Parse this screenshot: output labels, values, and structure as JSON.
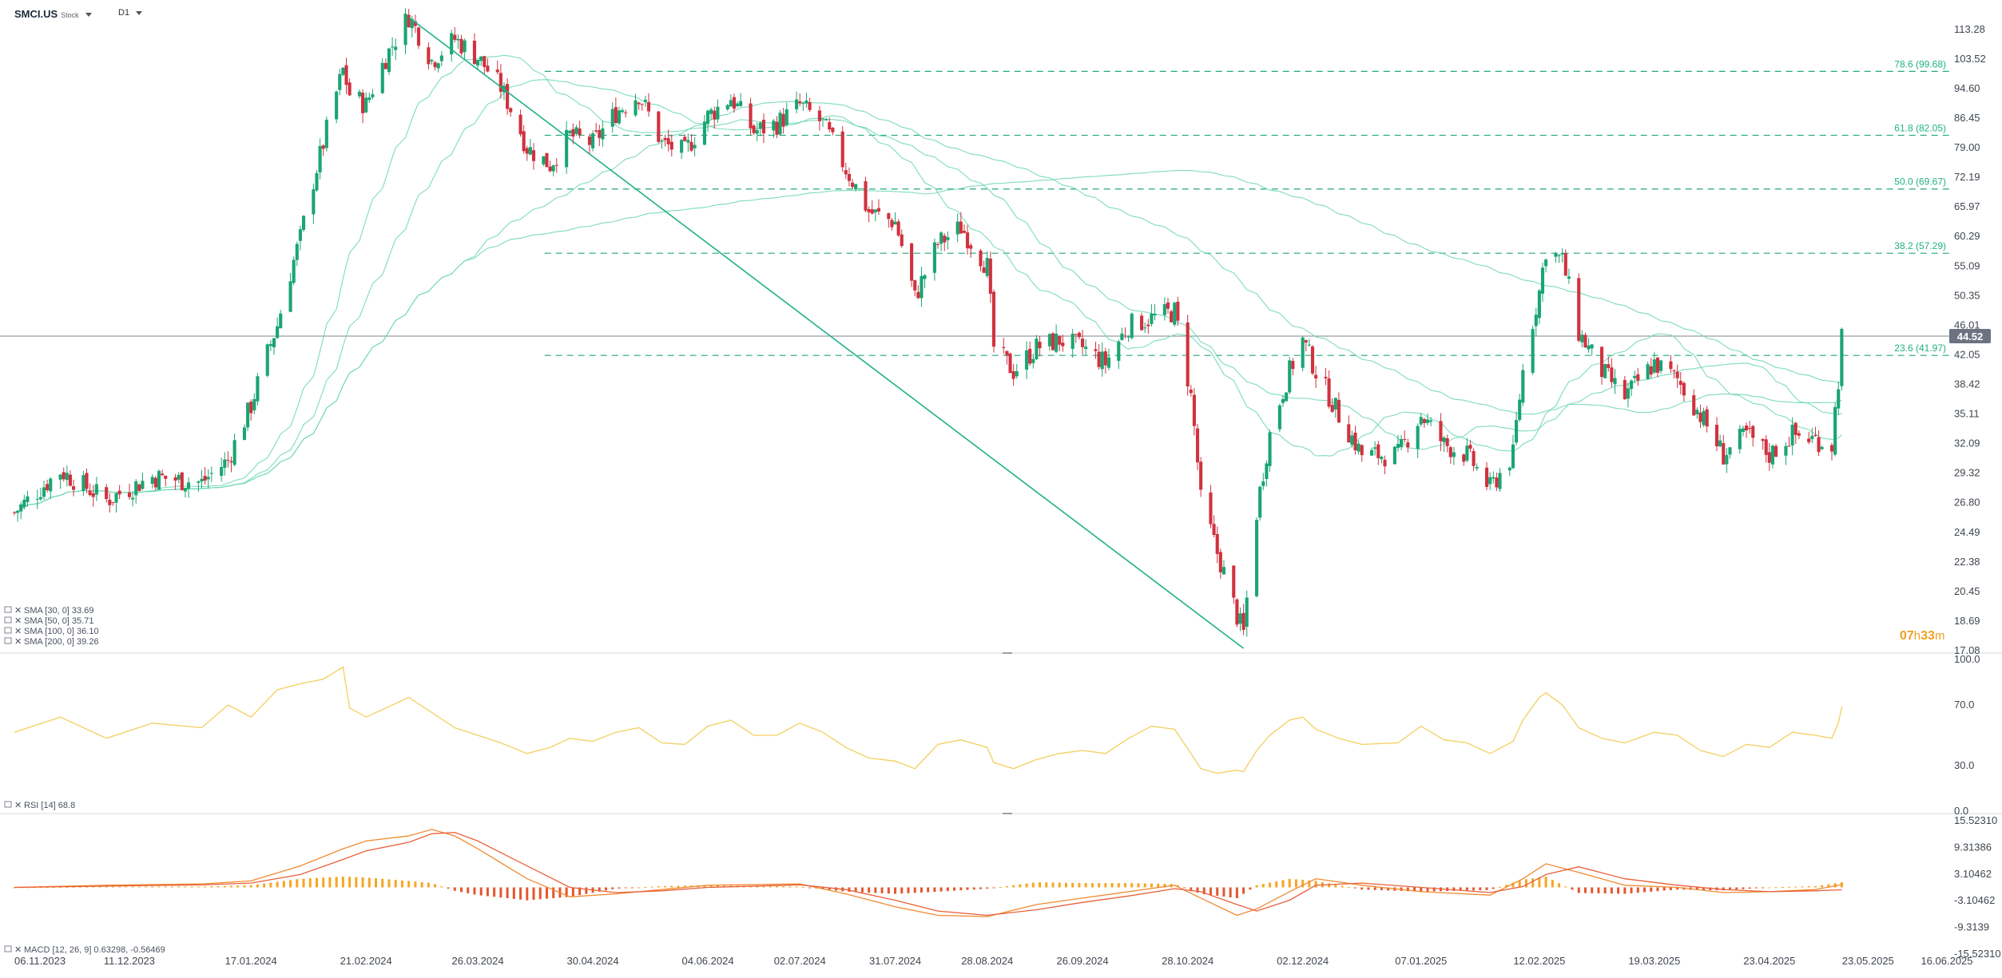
{
  "header": {
    "symbol": "SMCI.US",
    "asset_class": "Stock",
    "timeframe": "D1"
  },
  "timer": {
    "hours": "07",
    "hours_unit": "h",
    "minutes": "33",
    "minutes_unit": "m"
  },
  "colors": {
    "up_candle": "#1aa573",
    "down_candle": "#d0323f",
    "sma_line": "#6fd8b4",
    "fib_line": "#23a97a",
    "trendline": "#1fb08a",
    "rsi_line": "#f3cf5e",
    "macd_line": "#f08a30",
    "signal_line": "#e8603a",
    "hist_pos": "#f5a623",
    "hist_neg": "#e4572e",
    "price_badge": "#6b7280"
  },
  "chart_data": [
    {
      "type": "candlestick",
      "panel": "price",
      "symbol": "SMCI.US",
      "timeframe": "D1",
      "ylim": [
        17.08,
        118
      ],
      "y_ticks": [
        "113.28",
        "103.52",
        "94.60",
        "86.45",
        "79.00",
        "72.19",
        "65.97",
        "60.29",
        "55.09",
        "50.35",
        "46.01",
        "42.05",
        "38.42",
        "35.11",
        "32.09",
        "29.32",
        "26.80",
        "24.49",
        "22.38",
        "20.45",
        "18.69",
        "17.08"
      ],
      "x_ticks": [
        "06.11.2023",
        "11.12.2023",
        "17.01.2024",
        "21.02.2024",
        "26.03.2024",
        "30.04.2024",
        "04.06.2024",
        "02.07.2024",
        "31.07.2024",
        "28.08.2024",
        "26.09.2024",
        "28.10.2024",
        "02.12.2024",
        "07.01.2025",
        "12.02.2025",
        "19.03.2025",
        "23.04.2025",
        "23.05.2025",
        "16.06.2025"
      ],
      "last_price": "44.52",
      "close_path": [
        [
          "06.11.2023",
          26.0
        ],
        [
          "20.11.2023",
          29.5
        ],
        [
          "04.12.2023",
          27.0
        ],
        [
          "18.12.2023",
          29.0
        ],
        [
          "02.01.2024",
          28.5
        ],
        [
          "10.01.2024",
          30.5
        ],
        [
          "17.01.2024",
          36.0
        ],
        [
          "25.01.2024",
          46.0
        ],
        [
          "01.02.2024",
          60.0
        ],
        [
          "08.02.2024",
          80.0
        ],
        [
          "14.02.2024",
          100.0
        ],
        [
          "16.02.2024",
          93.0
        ],
        [
          "21.02.2024",
          90.0
        ],
        [
          "27.02.2024",
          104.0
        ],
        [
          "05.03.2024",
          118.0
        ],
        [
          "12.03.2024",
          103.0
        ],
        [
          "19.03.2024",
          110.0
        ],
        [
          "26.03.2024",
          104.0
        ],
        [
          "02.04.2024",
          95.0
        ],
        [
          "10.04.2024",
          79.0
        ],
        [
          "17.04.2024",
          75.0
        ],
        [
          "23.04.2024",
          82.0
        ],
        [
          "30.04.2024",
          80.0
        ],
        [
          "07.05.2024",
          88.0
        ],
        [
          "14.05.2024",
          93.0
        ],
        [
          "21.05.2024",
          80.0
        ],
        [
          "28.05.2024",
          78.0
        ],
        [
          "04.06.2024",
          87.0
        ],
        [
          "11.06.2024",
          92.0
        ],
        [
          "18.06.2024",
          83.0
        ],
        [
          "25.06.2024",
          85.0
        ],
        [
          "02.07.2024",
          90.0
        ],
        [
          "09.07.2024",
          85.0
        ],
        [
          "16.07.2024",
          74.0
        ],
        [
          "23.07.2024",
          65.0
        ],
        [
          "31.07.2024",
          63.0
        ],
        [
          "06.08.2024",
          50.0
        ],
        [
          "13.08.2024",
          59.0
        ],
        [
          "20.08.2024",
          62.0
        ],
        [
          "28.08.2024",
          55.0
        ],
        [
          "30.08.2024",
          43.0
        ],
        [
          "05.09.2024",
          40.0
        ],
        [
          "12.09.2024",
          43.0
        ],
        [
          "19.09.2024",
          44.0
        ],
        [
          "26.09.2024",
          43.0
        ],
        [
          "03.10.2024",
          41.0
        ],
        [
          "10.10.2024",
          46.0
        ],
        [
          "17.10.2024",
          47.0
        ],
        [
          "24.10.2024",
          48.0
        ],
        [
          "29.10.2024",
          37.0
        ],
        [
          "01.11.2024",
          27.0
        ],
        [
          "06.11.2024",
          23.0
        ],
        [
          "12.11.2024",
          19.0
        ],
        [
          "14.11.2024",
          18.0
        ],
        [
          "18.11.2024",
          26.0
        ],
        [
          "22.11.2024",
          33.0
        ],
        [
          "28.11.2024",
          40.0
        ],
        [
          "02.12.2024",
          44.0
        ],
        [
          "06.12.2024",
          40.0
        ],
        [
          "13.12.2024",
          35.0
        ],
        [
          "20.12.2024",
          31.0
        ],
        [
          "31.12.2024",
          31.0
        ],
        [
          "07.01.2025",
          35.0
        ],
        [
          "14.01.2025",
          32.0
        ],
        [
          "21.01.2025",
          31.0
        ],
        [
          "28.01.2025",
          28.0
        ],
        [
          "04.02.2025",
          31.0
        ],
        [
          "07.02.2025",
          40.0
        ],
        [
          "12.02.2025",
          51.0
        ],
        [
          "14.02.2025",
          58.0
        ],
        [
          "19.02.2025",
          56.0
        ],
        [
          "24.02.2025",
          45.0
        ],
        [
          "03.03.2025",
          40.0
        ],
        [
          "10.03.2025",
          37.0
        ],
        [
          "19.03.2025",
          41.0
        ],
        [
          "26.03.2025",
          39.0
        ],
        [
          "02.04.2025",
          35.0
        ],
        [
          "09.04.2025",
          31.0
        ],
        [
          "16.04.2025",
          33.0
        ],
        [
          "23.04.2025",
          31.0
        ],
        [
          "30.04.2025",
          33.0
        ],
        [
          "07.05.2025",
          32.5
        ],
        [
          "12.05.2025",
          32.0
        ],
        [
          "14.05.2025",
          39.0
        ],
        [
          "15.05.2025",
          44.5
        ]
      ],
      "series": [
        {
          "name": "SMA [30, 0]",
          "value": "33.69"
        },
        {
          "name": "SMA [50, 0]",
          "value": "35.71"
        },
        {
          "name": "SMA [100, 0]",
          "value": "36.10"
        },
        {
          "name": "SMA [200, 0]",
          "value": "39.26"
        }
      ],
      "fibonacci": [
        {
          "label": "78.6 (99.68)",
          "value": 99.68
        },
        {
          "label": "61.8 (82.05)",
          "value": 82.05
        },
        {
          "label": "50.0 (69.67)",
          "value": 69.67
        },
        {
          "label": "38.2 (57.29)",
          "value": 57.29
        },
        {
          "label": "23.6 (41.97)",
          "value": 41.97
        }
      ],
      "trendline": {
        "from": [
          "05.03.2024",
          117.5
        ],
        "to": [
          "14.11.2024",
          17.2
        ]
      }
    },
    {
      "type": "line",
      "panel": "rsi",
      "series": [
        {
          "name": "RSI [14]",
          "value": "68.8"
        }
      ],
      "ylim": [
        0,
        100
      ],
      "y_ticks": [
        "100.0",
        "70.0",
        "30.0",
        "0.0"
      ],
      "points": [
        [
          "06.11.2023",
          52
        ],
        [
          "20.11.2023",
          62
        ],
        [
          "04.12.2023",
          48
        ],
        [
          "18.12.2023",
          58
        ],
        [
          "02.01.2024",
          55
        ],
        [
          "10.01.2024",
          70
        ],
        [
          "17.01.2024",
          62
        ],
        [
          "25.01.2024",
          80
        ],
        [
          "01.02.2024",
          84
        ],
        [
          "08.02.2024",
          87
        ],
        [
          "14.02.2024",
          95
        ],
        [
          "16.02.2024",
          68
        ],
        [
          "21.02.2024",
          62
        ],
        [
          "27.02.2024",
          68
        ],
        [
          "05.03.2024",
          75
        ],
        [
          "12.03.2024",
          65
        ],
        [
          "19.03.2024",
          55
        ],
        [
          "26.03.2024",
          50
        ],
        [
          "02.04.2024",
          45
        ],
        [
          "10.04.2024",
          38
        ],
        [
          "17.04.2024",
          42
        ],
        [
          "23.04.2024",
          48
        ],
        [
          "30.04.2024",
          46
        ],
        [
          "07.05.2024",
          52
        ],
        [
          "14.05.2024",
          55
        ],
        [
          "21.05.2024",
          45
        ],
        [
          "28.05.2024",
          44
        ],
        [
          "04.06.2024",
          56
        ],
        [
          "11.06.2024",
          60
        ],
        [
          "18.06.2024",
          50
        ],
        [
          "25.06.2024",
          50
        ],
        [
          "02.07.2024",
          58
        ],
        [
          "09.07.2024",
          52
        ],
        [
          "16.07.2024",
          42
        ],
        [
          "23.07.2024",
          35
        ],
        [
          "31.07.2024",
          33
        ],
        [
          "06.08.2024",
          28
        ],
        [
          "13.08.2024",
          44
        ],
        [
          "20.08.2024",
          47
        ],
        [
          "28.08.2024",
          42
        ],
        [
          "30.08.2024",
          32
        ],
        [
          "05.09.2024",
          28
        ],
        [
          "12.09.2024",
          34
        ],
        [
          "19.09.2024",
          38
        ],
        [
          "26.09.2024",
          40
        ],
        [
          "03.10.2024",
          38
        ],
        [
          "10.10.2024",
          48
        ],
        [
          "17.10.2024",
          56
        ],
        [
          "24.10.2024",
          54
        ],
        [
          "29.10.2024",
          38
        ],
        [
          "01.11.2024",
          28
        ],
        [
          "06.11.2024",
          25
        ],
        [
          "12.11.2024",
          27
        ],
        [
          "14.11.2024",
          26
        ],
        [
          "18.11.2024",
          40
        ],
        [
          "22.11.2024",
          50
        ],
        [
          "28.11.2024",
          60
        ],
        [
          "02.12.2024",
          62
        ],
        [
          "06.12.2024",
          54
        ],
        [
          "13.12.2024",
          48
        ],
        [
          "20.12.2024",
          44
        ],
        [
          "31.12.2024",
          45
        ],
        [
          "07.01.2025",
          56
        ],
        [
          "14.01.2025",
          47
        ],
        [
          "21.01.2025",
          45
        ],
        [
          "28.01.2025",
          38
        ],
        [
          "04.02.2025",
          46
        ],
        [
          "07.02.2025",
          60
        ],
        [
          "12.02.2025",
          75
        ],
        [
          "14.02.2025",
          78
        ],
        [
          "19.02.2025",
          70
        ],
        [
          "24.02.2025",
          55
        ],
        [
          "03.03.2025",
          48
        ],
        [
          "10.03.2025",
          45
        ],
        [
          "19.03.2025",
          52
        ],
        [
          "26.03.2025",
          50
        ],
        [
          "02.04.2025",
          40
        ],
        [
          "09.04.2025",
          36
        ],
        [
          "16.04.2025",
          44
        ],
        [
          "23.04.2025",
          42
        ],
        [
          "30.04.2025",
          52
        ],
        [
          "07.05.2025",
          50
        ],
        [
          "12.05.2025",
          48
        ],
        [
          "14.05.2025",
          58
        ],
        [
          "15.05.2025",
          68.8
        ]
      ]
    },
    {
      "type": "line",
      "panel": "macd",
      "series": [
        {
          "name": "MACD [12, 26, 9]",
          "value": "0.63298, -0.56469"
        }
      ],
      "ylim": [
        -15.5231,
        15.5231
      ],
      "y_ticks": [
        "15.52310",
        "9.31386",
        "3.10462",
        "-3.10462",
        "-9.3139",
        "-15.52310"
      ],
      "macd": [
        [
          "06.11.2023",
          0.0
        ],
        [
          "04.12.2023",
          0.5
        ],
        [
          "02.01.2024",
          0.8
        ],
        [
          "17.01.2024",
          1.5
        ],
        [
          "01.02.2024",
          5.0
        ],
        [
          "14.02.2024",
          9.0
        ],
        [
          "21.02.2024",
          10.8
        ],
        [
          "05.03.2024",
          12.0
        ],
        [
          "12.03.2024",
          13.5
        ],
        [
          "19.03.2024",
          12.0
        ],
        [
          "26.03.2024",
          9.0
        ],
        [
          "10.04.2024",
          2.0
        ],
        [
          "23.04.2024",
          -2.2
        ],
        [
          "07.05.2024",
          -1.5
        ],
        [
          "21.05.2024",
          -0.5
        ],
        [
          "04.06.2024",
          0.5
        ],
        [
          "02.07.2024",
          0.8
        ],
        [
          "16.07.2024",
          -1.5
        ],
        [
          "31.07.2024",
          -4.5
        ],
        [
          "13.08.2024",
          -6.5
        ],
        [
          "28.08.2024",
          -6.8
        ],
        [
          "12.09.2024",
          -4.0
        ],
        [
          "26.09.2024",
          -2.5
        ],
        [
          "10.10.2024",
          -1.0
        ],
        [
          "24.10.2024",
          0.5
        ],
        [
          "01.11.2024",
          -2.5
        ],
        [
          "12.11.2024",
          -6.5
        ],
        [
          "18.11.2024",
          -5.0
        ],
        [
          "28.11.2024",
          -1.0
        ],
        [
          "06.12.2024",
          2.0
        ],
        [
          "20.12.2024",
          0.5
        ],
        [
          "07.01.2025",
          -1.0
        ],
        [
          "28.01.2025",
          -1.8
        ],
        [
          "07.02.2025",
          2.0
        ],
        [
          "14.02.2025",
          5.5
        ],
        [
          "24.02.2025",
          3.5
        ],
        [
          "10.03.2025",
          0.5
        ],
        [
          "26.03.2025",
          0.0
        ],
        [
          "09.04.2025",
          -1.2
        ],
        [
          "23.04.2025",
          -1.0
        ],
        [
          "07.05.2025",
          -0.5
        ],
        [
          "15.05.2025",
          0.63
        ]
      ],
      "signal": [
        [
          "06.11.2023",
          0.0
        ],
        [
          "04.12.2023",
          0.3
        ],
        [
          "02.01.2024",
          0.6
        ],
        [
          "17.01.2024",
          1.0
        ],
        [
          "01.02.2024",
          3.0
        ],
        [
          "14.02.2024",
          6.5
        ],
        [
          "21.02.2024",
          8.5
        ],
        [
          "05.03.2024",
          10.5
        ],
        [
          "12.03.2024",
          12.5
        ],
        [
          "19.03.2024",
          12.8
        ],
        [
          "26.03.2024",
          10.8
        ],
        [
          "10.04.2024",
          5.0
        ],
        [
          "23.04.2024",
          0.0
        ],
        [
          "07.05.2024",
          -1.2
        ],
        [
          "21.05.2024",
          -0.8
        ],
        [
          "04.06.2024",
          0.0
        ],
        [
          "02.07.2024",
          0.6
        ],
        [
          "16.07.2024",
          -0.5
        ],
        [
          "31.07.2024",
          -3.0
        ],
        [
          "13.08.2024",
          -5.5
        ],
        [
          "28.08.2024",
          -6.5
        ],
        [
          "12.09.2024",
          -5.2
        ],
        [
          "26.09.2024",
          -3.5
        ],
        [
          "10.10.2024",
          -2.0
        ],
        [
          "24.10.2024",
          -0.3
        ],
        [
          "01.11.2024",
          -1.0
        ],
        [
          "12.11.2024",
          -4.0
        ],
        [
          "18.11.2024",
          -5.5
        ],
        [
          "28.11.2024",
          -3.0
        ],
        [
          "06.12.2024",
          0.5
        ],
        [
          "20.12.2024",
          1.0
        ],
        [
          "07.01.2025",
          0.0
        ],
        [
          "28.01.2025",
          -1.2
        ],
        [
          "07.02.2025",
          0.2
        ],
        [
          "14.02.2025",
          3.0
        ],
        [
          "24.02.2025",
          4.8
        ],
        [
          "10.03.2025",
          2.0
        ],
        [
          "26.03.2025",
          0.5
        ],
        [
          "09.04.2025",
          -0.5
        ],
        [
          "23.04.2025",
          -1.0
        ],
        [
          "07.05.2025",
          -0.8
        ],
        [
          "15.05.2025",
          -0.56
        ]
      ]
    }
  ]
}
